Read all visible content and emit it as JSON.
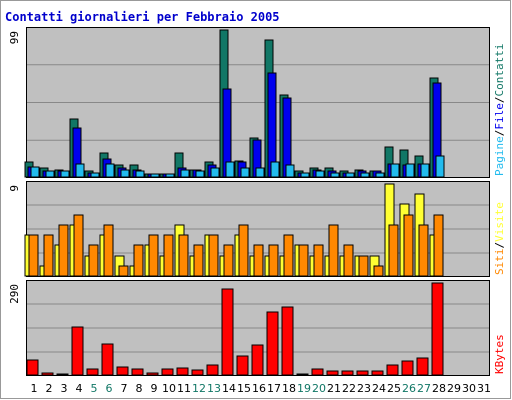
{
  "chart_data": {
    "type": "bar",
    "title": "Contatti giornalieri per Febbraio 2005",
    "colors": {
      "background": "#c0c0c0",
      "title": "#0000cc",
      "contatti": "#117766",
      "file": "#0000ee",
      "pagine": "#22bbee",
      "visite": "#ffff33",
      "siti": "#ff8800",
      "kbytes": "#ff0000",
      "weekend_day": "#117766"
    },
    "days": [
      "1",
      "2",
      "3",
      "4",
      "5",
      "6",
      "7",
      "8",
      "9",
      "10",
      "11",
      "12",
      "13",
      "14",
      "15",
      "16",
      "17",
      "18",
      "19",
      "20",
      "21",
      "22",
      "23",
      "24",
      "25",
      "26",
      "27",
      "28",
      "29",
      "30",
      "31"
    ],
    "weekend_days": [
      "5",
      "6",
      "12",
      "13",
      "19",
      "20",
      "26",
      "27"
    ],
    "panels": [
      {
        "key": "top",
        "ymax_label": "99",
        "ymax": 99,
        "legend": [
          {
            "text": "Pagine",
            "color": "#22bbee"
          },
          {
            "text": "/",
            "color": "#000000"
          },
          {
            "text": "File",
            "color": "#0000ee"
          },
          {
            "text": "/",
            "color": "#000000"
          },
          {
            "text": "Contatti",
            "color": "#117766"
          }
        ],
        "series": [
          {
            "name": "Contatti",
            "color": "#117766",
            "values": [
              10,
              6,
              5,
              39,
              4,
              16,
              8,
              8,
              2,
              2,
              16,
              5,
              10,
              99,
              11,
              26,
              92,
              55,
              4,
              6,
              6,
              4,
              5,
              4,
              20,
              18,
              14,
              67,
              null,
              null,
              null
            ]
          },
          {
            "name": "File",
            "color": "#0000ee",
            "values": [
              7,
              4,
              4,
              33,
              3,
              12,
              6,
              5,
              2,
              2,
              6,
              5,
              8,
              59,
              10,
              25,
              70,
              53,
              3,
              5,
              4,
              3,
              4,
              4,
              9,
              8,
              9,
              63,
              null,
              null,
              null
            ]
          },
          {
            "name": "Pagine",
            "color": "#22bbee",
            "values": [
              7,
              4,
              4,
              9,
              3,
              9,
              5,
              4,
              2,
              2,
              5,
              4,
              6,
              10,
              6,
              6,
              10,
              8,
              3,
              4,
              3,
              3,
              3,
              3,
              9,
              9,
              9,
              14,
              null,
              null,
              null
            ]
          }
        ]
      },
      {
        "key": "middle",
        "ymax_label": "9",
        "ymax": 9,
        "legend": [
          {
            "text": "Siti",
            "color": "#ff8800"
          },
          {
            "text": "/",
            "color": "#000000"
          },
          {
            "text": "Visite",
            "color": "#ffff33"
          }
        ],
        "series": [
          {
            "name": "Visite",
            "color": "#ffff33",
            "values": [
              4,
              1,
              3,
              5,
              2,
              4,
              2,
              1,
              3,
              2,
              5,
              2,
              4,
              2,
              4,
              2,
              2,
              2,
              3,
              2,
              2,
              2,
              2,
              2,
              9,
              7,
              8,
              4,
              null,
              null,
              null
            ]
          },
          {
            "name": "Siti",
            "color": "#ff8800",
            "values": [
              4,
              4,
              5,
              6,
              3,
              5,
              1,
              3,
              4,
              4,
              4,
              3,
              4,
              3,
              5,
              3,
              3,
              4,
              3,
              3,
              5,
              3,
              2,
              1,
              5,
              6,
              5,
              6,
              null,
              null,
              null
            ]
          }
        ]
      },
      {
        "key": "bottom",
        "ymax_label": "290",
        "ymax": 290,
        "legend": [
          {
            "text": "KBytes",
            "color": "#ff0000"
          }
        ],
        "series": [
          {
            "name": "KBytes",
            "color": "#ff0000",
            "values": [
              48,
              6,
              2,
              150,
              18,
              97,
              25,
              20,
              6,
              18,
              22,
              15,
              32,
              272,
              60,
              95,
              200,
              215,
              2,
              18,
              12,
              14,
              12,
              14,
              30,
              45,
              55,
              290,
              null,
              null,
              null
            ]
          }
        ]
      }
    ]
  }
}
